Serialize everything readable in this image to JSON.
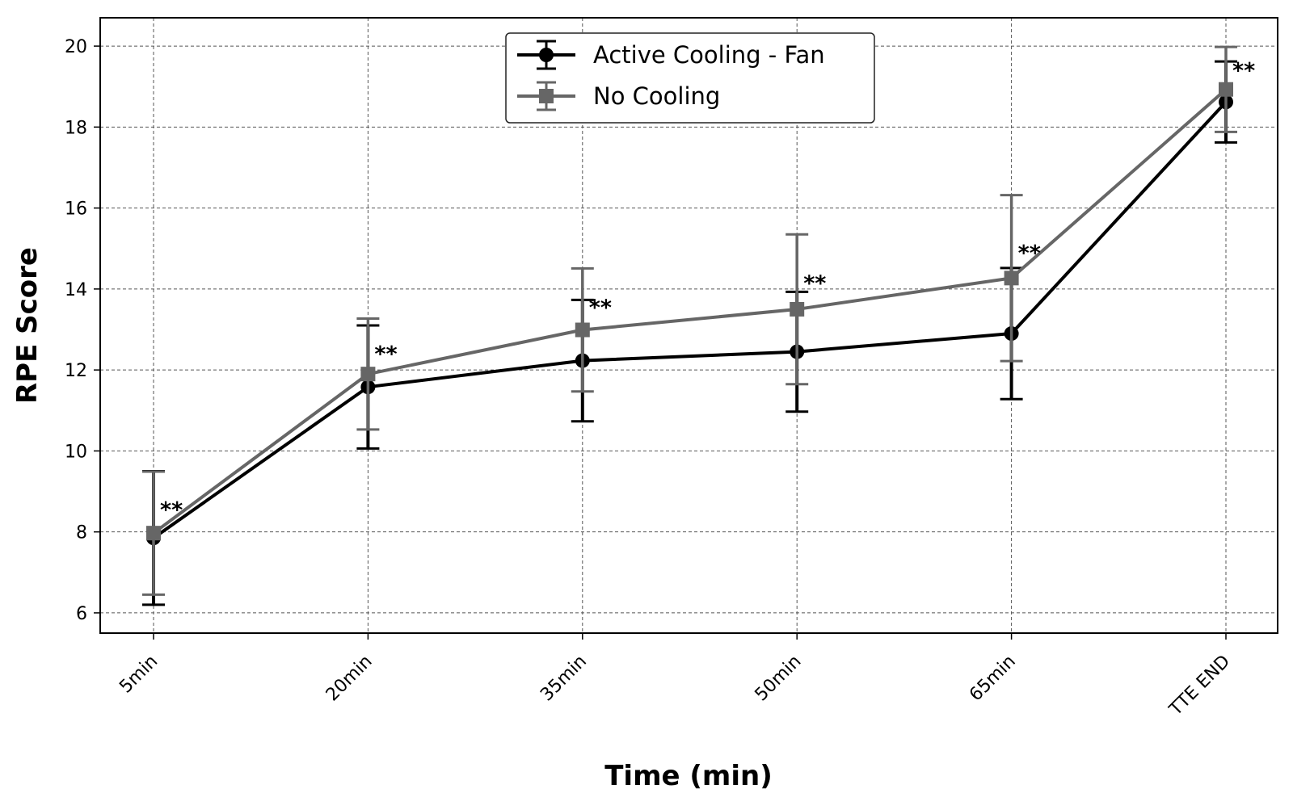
{
  "chart_data": {
    "type": "line",
    "title": "",
    "xlabel": "Time (min)",
    "ylabel": "RPE Score",
    "categories": [
      "5min",
      "20min",
      "35min",
      "50min",
      "65min",
      "TTE END"
    ],
    "ylim": [
      5.5,
      20.7
    ],
    "yticks": [
      6,
      8,
      10,
      12,
      14,
      16,
      18,
      20
    ],
    "ytick_labels": [
      "6",
      "8",
      "10",
      "12",
      "14",
      "16",
      "18",
      "20"
    ],
    "grid": true,
    "legend_position": "top-center",
    "series": [
      {
        "name": "Active Cooling - Fan",
        "color": "#000000",
        "marker": "circle",
        "values": [
          7.85,
          11.58,
          12.23,
          12.45,
          12.9,
          18.62
        ],
        "errors": [
          1.65,
          1.52,
          1.5,
          1.48,
          1.62,
          1.0
        ]
      },
      {
        "name": "No Cooling",
        "color": "#666666",
        "marker": "square",
        "values": [
          7.97,
          11.9,
          12.99,
          13.5,
          14.27,
          18.93
        ],
        "errors": [
          1.52,
          1.37,
          1.52,
          1.85,
          2.05,
          1.05
        ]
      }
    ],
    "annotations": [
      {
        "category": "5min",
        "text": "**",
        "y": 8.6
      },
      {
        "category": "20min",
        "text": "**",
        "y": 12.45
      },
      {
        "category": "35min",
        "text": "**",
        "y": 13.6
      },
      {
        "category": "50min",
        "text": "**",
        "y": 14.2
      },
      {
        "category": "65min",
        "text": "**",
        "y": 14.95
      },
      {
        "category": "TTE END",
        "text": "**",
        "y": 19.45
      }
    ]
  }
}
